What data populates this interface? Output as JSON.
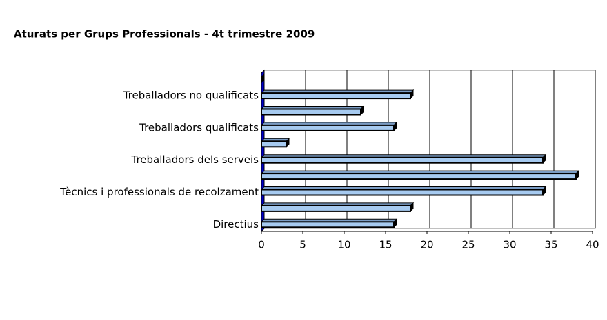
{
  "chart_data": {
    "type": "bar",
    "orientation": "horizontal",
    "title": "Aturats per Grups Professionals - 4t trimestre 2009",
    "categories": [
      "Directius",
      null,
      "Tècnics i professionals de recolzament",
      null,
      "Treballadors dels serveis",
      null,
      "Treballadors qualificats",
      null,
      "Treballadors no qualificats",
      null
    ],
    "values": [
      16,
      18,
      34,
      38,
      34,
      3,
      16,
      12,
      18,
      0
    ],
    "color": "#a6caf0",
    "xlim": [
      0,
      40
    ],
    "xticks": [
      0,
      5,
      10,
      15,
      20,
      25,
      30,
      35,
      40
    ],
    "grid": true
  }
}
